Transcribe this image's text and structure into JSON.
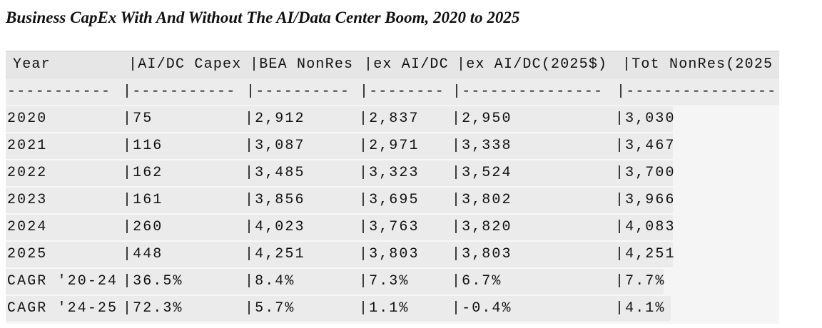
{
  "header": {
    "title": "Business CapEx With And Without The AI/Data Center Boom, 2020 to 2025"
  },
  "table": {
    "columns": [
      "Year",
      "|AI/DC Capex",
      "|BEA NonRes",
      "|ex AI/DC",
      "|ex AI/DC(2025$)",
      "|Tot NonRes(2025"
    ],
    "separator": [
      "-----------",
      "|-----------",
      "|----------",
      "|--------",
      "|---------------",
      "|----------------"
    ],
    "rows": [
      [
        "2020",
        "|75",
        "|2,912",
        "|2,837",
        "|2,950",
        "|3,030"
      ],
      [
        "2021",
        "|116",
        "|3,087",
        "|2,971",
        "|3,338",
        "|3,467"
      ],
      [
        "2022",
        "|162",
        "|3,485",
        "|3,323",
        "|3,524",
        "|3,700"
      ],
      [
        "2023",
        "|161",
        "|3,856",
        "|3,695",
        "|3,802",
        "|3,966"
      ],
      [
        "2024",
        "|260",
        "|4,023",
        "|3,763",
        "|3,820",
        "|4,083"
      ],
      [
        "2025",
        "|448",
        "|4,251",
        "|3,803",
        "|3,803",
        "|4,251"
      ],
      [
        "CAGR '20-24",
        "|36.5%",
        "|8.4%",
        "|7.3%",
        "|6.7%",
        "|7.7%"
      ],
      [
        "CAGR '24-25",
        "|72.3%",
        "|5.7%",
        "|1.1%",
        "|-0.4%",
        "|4.1%"
      ]
    ]
  }
}
